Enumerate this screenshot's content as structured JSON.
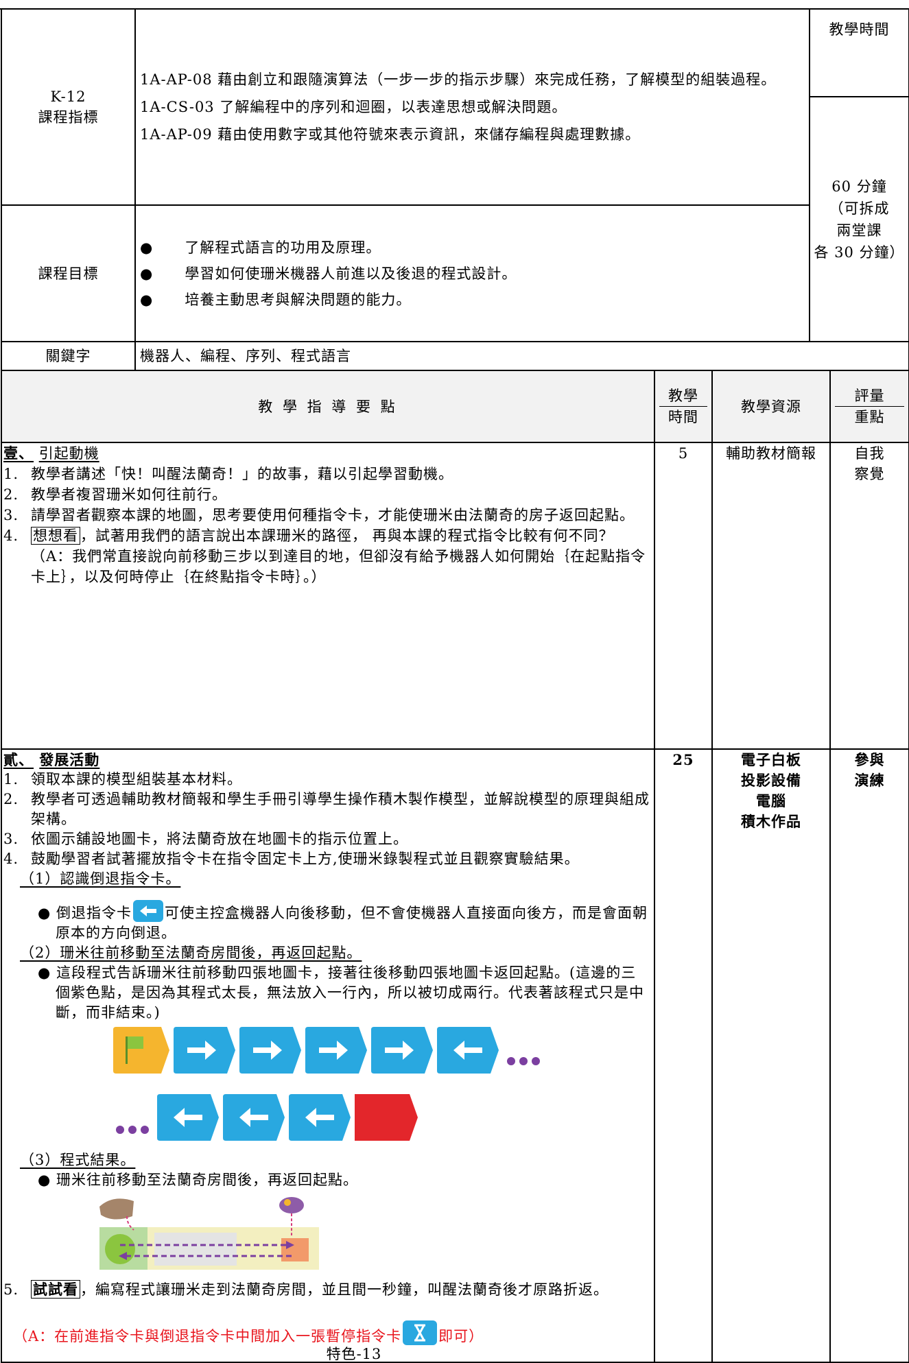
{
  "indicators": {
    "label": [
      "K-12",
      "課程指標"
    ],
    "items": [
      "1A-AP-08 藉由創立和跟隨演算法（一步一步的指示步驟）來完成任務，了解模型的組裝過程。",
      "1A-CS-03 了解編程中的序列和迴圈，以表達思想或解決問題。",
      "1A-AP-09 藉由使用數字或其他符號來表示資訊，來儲存編程與處理數據。"
    ]
  },
  "time": {
    "label": "教學時間",
    "value": [
      "60 分鐘",
      "（可拆成",
      "兩堂課",
      "各 30 分鐘）"
    ]
  },
  "objectives": {
    "label": "課程目標",
    "items": [
      "了解程式語言的功用及原理。",
      "學習如何使珊米機器人前進以及後退的程式設計。",
      "培養主動思考與解決問題的能力。"
    ]
  },
  "keywords": {
    "label": "關鍵字",
    "value": "機器人、編程、序列、程式語言"
  },
  "columns": {
    "guide": "教 學 指 導 要 點",
    "time": [
      "教學",
      "時間"
    ],
    "resources": "教學資源",
    "assessment": [
      "評量",
      "重點"
    ]
  },
  "sections": [
    {
      "heading": "壹、",
      "title": "引起動機",
      "time": "5",
      "resources": [
        "輔助教材簡報"
      ],
      "assessment": [
        "自我",
        "察覺"
      ],
      "steps": [
        {
          "num": "1.",
          "text": "教學者講述「快！叫醒法蘭奇！」的故事，藉以引起學習動機。"
        },
        {
          "num": "2.",
          "text": "教學者複習珊米如何往前行。"
        },
        {
          "num": "3.",
          "text": "請學習者觀察本課的地圖，思考要使用何種指令卡，才能使珊米由法蘭奇的房子返回起點。"
        },
        {
          "num": "4.",
          "boxed": "想想看",
          "text": "，試著用我們的語言說出本課珊米的路徑， 再與本課的程式指令比較有何不同？",
          "answer": "（A：我們常直接說向前移動三步以到達目的地，但卻沒有給予機器人如何開始｛在起點指令卡上｝，以及何時停止｛在終點指令卡時｝。）"
        }
      ]
    },
    {
      "heading": "貳、",
      "title": "發展活動",
      "time": "25",
      "resources": [
        "電子白板",
        "投影設備",
        "電腦",
        "積木作品"
      ],
      "assessment": [
        "參與",
        "演練"
      ],
      "steps": [
        {
          "num": "1.",
          "text": "領取本課的模型組裝基本材料。"
        },
        {
          "num": "2.",
          "text": "教學者可透過輔助教材簡報和學生手冊引導學生操作積木製作模型，並解說模型的原理與組成架構。"
        },
        {
          "num": "3.",
          "text": "依圖示舖設地圖卡，將法蘭奇放在地圖卡的指示位置上。"
        },
        {
          "num": "4.",
          "text": "鼓勵學習者試著擺放指令卡在指令固定卡上方,使珊米錄製程式並且觀察實驗結果。"
        }
      ],
      "subs": [
        {
          "label": "（1）認識倒退指令卡。",
          "bullet_before": "倒退指令卡",
          "bullet_after": "可使主控盒機器人向後移動，但不會使機器人直接面向後方，而是會面朝原本的方向倒退。"
        },
        {
          "label": "（2）珊米往前移動至法蘭奇房間後，再返回起點。",
          "bullet": "這段程式告訴珊米往前移動四張地圖卡，接著往後移動四張地圖卡返回起點。(這邊的三個紫色點，是因為其程式太長，無法放入一行內，所以被切成兩行。代表著該程式只是中斷，而非結束。)"
        },
        {
          "label": "（3）程式結果。",
          "bullet": "珊米往前移動至法蘭奇房間後，再返回起點。"
        }
      ],
      "step5": {
        "num": "5.",
        "boxed": "試試看",
        "text": "，編寫程式讓珊米走到法蘭奇房間，並且間一秒鐘，叫醒法蘭奇後才原路折返。",
        "answer_before": "（A：在前進指令卡與倒退指令卡中間加入一張暫停指令卡",
        "answer_after": "即可）"
      }
    }
  ],
  "footer": "特色-13"
}
